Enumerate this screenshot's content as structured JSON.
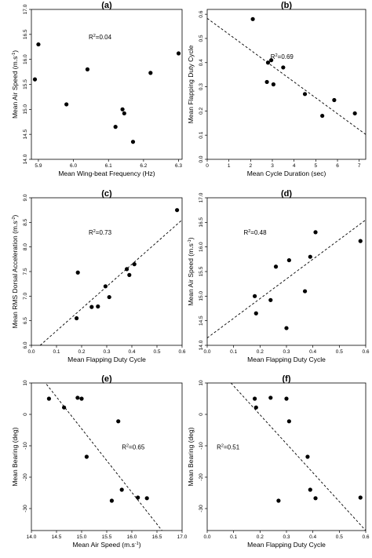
{
  "chart_data": [
    {
      "type": "scatter",
      "panel_label": "(a)",
      "xlabel": "Mean Wing-beat Frequency (Hz)",
      "ylabel": "Mean Air Speed (m.s",
      "ylabel_sup": "-1",
      "ylabel_end": ")",
      "xlim": [
        5.88,
        6.31
      ],
      "ylim": [
        14.0,
        17.0
      ],
      "xticks": [
        "5.9",
        "6.0",
        "6.1",
        "6.2",
        "6.3"
      ],
      "yticks": [
        "14.0",
        "14.5",
        "15.0",
        "15.5",
        "16.0",
        "16.5",
        "17.0"
      ],
      "r2_prefix": "R",
      "r2_sup": "2",
      "r2_value": "=0.04",
      "x": [
        5.89,
        5.9,
        5.98,
        6.04,
        6.12,
        6.14,
        6.145,
        6.17,
        6.22,
        6.3
      ],
      "y": [
        15.6,
        16.3,
        15.1,
        15.8,
        14.65,
        15.0,
        14.92,
        14.35,
        15.73,
        16.12
      ],
      "trend": null
    },
    {
      "type": "scatter",
      "panel_label": "(b)",
      "xlabel": "Mean Cycle Duration (sec)",
      "ylabel": "Mean Flapping Duty Cycle",
      "xlim": [
        0,
        7.3
      ],
      "ylim": [
        0.0,
        0.62
      ],
      "xticks": [
        "0",
        "1",
        "2",
        "3",
        "4",
        "5",
        "6",
        "7"
      ],
      "yticks": [
        "0.0",
        "0.1",
        "0.2",
        "0.3",
        "0.4",
        "0.5",
        "0.6"
      ],
      "r2_prefix": "R",
      "r2_sup": "2",
      "r2_value": "=0.69",
      "x": [
        2.1,
        2.75,
        2.8,
        2.95,
        3.05,
        3.5,
        4.5,
        5.3,
        5.85,
        6.8
      ],
      "y": [
        0.58,
        0.32,
        0.4,
        0.41,
        0.31,
        0.38,
        0.27,
        0.18,
        0.245,
        0.19
      ],
      "trend": [
        [
          0,
          0.583
        ],
        [
          7.3,
          0.103
        ]
      ]
    },
    {
      "type": "scatter",
      "panel_label": "(c)",
      "xlabel": "Mean Flapping Duty Cycle",
      "ylabel": "Mean RMS Dorsal Acceleration (m.s",
      "ylabel_sup": "-2",
      "ylabel_end": ")",
      "xlim": [
        0.0,
        0.6
      ],
      "ylim": [
        6.0,
        9.0
      ],
      "xticks": [
        "0.0",
        "0.1",
        "0.2",
        "0.3",
        "0.4",
        "0.5",
        "0.6"
      ],
      "yticks": [
        "6.0",
        "6.5",
        "7.0",
        "7.5",
        "8.0",
        "8.5",
        "9.0"
      ],
      "r2_prefix": "R",
      "r2_sup": "2",
      "r2_value": "=0.73",
      "x": [
        0.18,
        0.185,
        0.24,
        0.265,
        0.295,
        0.31,
        0.38,
        0.39,
        0.41,
        0.58
      ],
      "y": [
        6.55,
        7.48,
        6.78,
        6.79,
        7.2,
        6.98,
        7.55,
        7.43,
        7.65,
        8.75
      ],
      "trend": [
        [
          0.035,
          6.0
        ],
        [
          0.6,
          8.55
        ]
      ]
    },
    {
      "type": "scatter",
      "panel_label": "(d)",
      "xlabel": "Mean Flapping Duty Cycle",
      "ylabel": "Mean Air Speed (m.s",
      "ylabel_sup": "-1",
      "ylabel_end": ")",
      "xlim": [
        0.0,
        0.6
      ],
      "ylim": [
        14.0,
        17.0
      ],
      "xticks": [
        "0.0",
        "0.1",
        "0.2",
        "0.3",
        "0.4",
        "0.5",
        "0.6"
      ],
      "yticks": [
        "14.0",
        "14.5",
        "15.0",
        "15.5",
        "16.0",
        "16.5",
        "17.0"
      ],
      "r2_prefix": "R",
      "r2_sup": "2",
      "r2_value": "=0.48",
      "x": [
        0.18,
        0.185,
        0.24,
        0.26,
        0.3,
        0.31,
        0.37,
        0.39,
        0.41,
        0.58
      ],
      "y": [
        15.0,
        14.65,
        14.92,
        15.6,
        14.35,
        15.73,
        15.1,
        15.8,
        16.3,
        16.12
      ],
      "trend": [
        [
          0.0,
          14.15
        ],
        [
          0.6,
          16.55
        ]
      ]
    },
    {
      "type": "scatter",
      "panel_label": "(e)",
      "xlabel": "Mean Air Speed (m.s",
      "xlabel_sup": "-1",
      "xlabel_end": ")",
      "ylabel": "Mean Bearing (deg)",
      "xlim": [
        14.0,
        17.0
      ],
      "ylim": [
        -37,
        10
      ],
      "xticks": [
        "14.0",
        "14.5",
        "15.0",
        "15.5",
        "16.0",
        "16.5",
        "17.0"
      ],
      "yticks": [
        "-30",
        "-20",
        "-10",
        "0",
        "10"
      ],
      "r2_prefix": "R",
      "r2_sup": "2",
      "r2_value": "=0.65",
      "x": [
        14.35,
        14.65,
        14.92,
        15.0,
        15.1,
        15.6,
        15.73,
        15.8,
        16.12,
        16.3
      ],
      "y": [
        5.0,
        2.2,
        5.3,
        5.0,
        -13.5,
        -27.5,
        -2.2,
        -24.0,
        -26.5,
        -26.7
      ],
      "trend": [
        [
          14.3,
          9.6
        ],
        [
          16.6,
          -37
        ]
      ]
    },
    {
      "type": "scatter",
      "panel_label": "(f)",
      "xlabel": "Mean Flapping Duty Cycle",
      "ylabel": "Mean Bearing (deg)",
      "xlim": [
        0.0,
        0.6
      ],
      "ylim": [
        -37,
        10
      ],
      "xticks": [
        "0.0",
        "0.1",
        "0.2",
        "0.3",
        "0.4",
        "0.5",
        "0.6"
      ],
      "yticks": [
        "-30",
        "-20",
        "-10",
        "0",
        "10"
      ],
      "r2_prefix": "R",
      "r2_sup": "2",
      "r2_value": "=0.51",
      "x": [
        0.18,
        0.185,
        0.24,
        0.27,
        0.3,
        0.31,
        0.38,
        0.39,
        0.41,
        0.58
      ],
      "y": [
        5.0,
        2.2,
        5.3,
        -27.5,
        5.0,
        -2.2,
        -13.5,
        -24.0,
        -26.7,
        -26.5
      ],
      "trend": [
        [
          0.09,
          10.0
        ],
        [
          0.6,
          -37
        ]
      ]
    }
  ]
}
